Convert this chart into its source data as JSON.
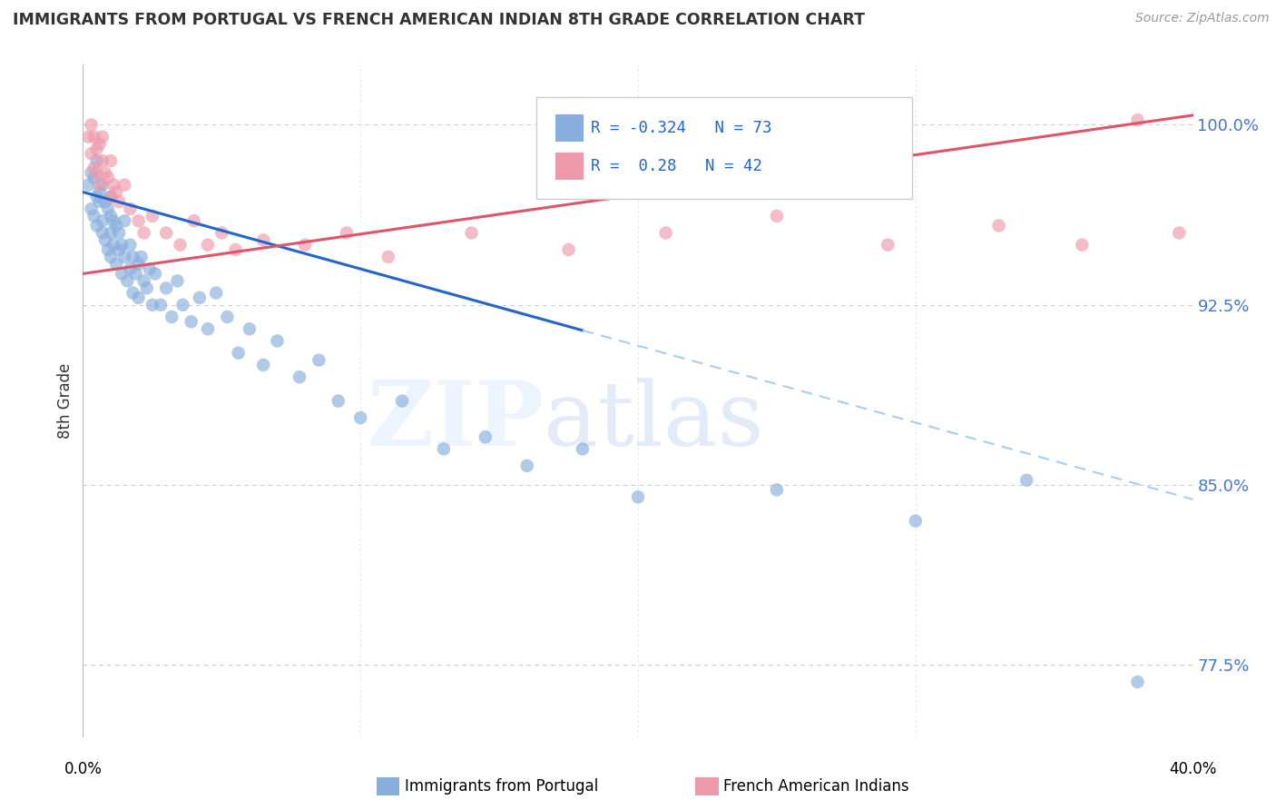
{
  "title": "IMMIGRANTS FROM PORTUGAL VS FRENCH AMERICAN INDIAN 8TH GRADE CORRELATION CHART",
  "source": "Source: ZipAtlas.com",
  "ylabel": "8th Grade",
  "yticks": [
    77.5,
    85.0,
    92.5,
    100.0
  ],
  "xlim": [
    0.0,
    40.0
  ],
  "ylim": [
    74.5,
    102.5
  ],
  "blue_R": -0.324,
  "blue_N": 73,
  "pink_R": 0.28,
  "pink_N": 42,
  "blue_color": "#88AEDD",
  "pink_color": "#EE99AA",
  "blue_line_color": "#2266CC",
  "pink_line_color": "#DD5566",
  "dashed_line_color": "#AACCEE",
  "legend_label_blue": "Immigrants from Portugal",
  "legend_label_pink": "French American Indians",
  "blue_line_x0": 0.0,
  "blue_line_y0": 97.2,
  "blue_line_slope": -0.32,
  "blue_solid_end_x": 18.0,
  "pink_line_x0": 0.0,
  "pink_line_y0": 93.8,
  "pink_line_slope": 0.165,
  "blue_scatter_x": [
    0.2,
    0.3,
    0.3,
    0.4,
    0.4,
    0.5,
    0.5,
    0.5,
    0.6,
    0.6,
    0.7,
    0.7,
    0.7,
    0.8,
    0.8,
    0.9,
    0.9,
    1.0,
    1.0,
    1.0,
    1.0,
    1.1,
    1.1,
    1.2,
    1.2,
    1.3,
    1.3,
    1.4,
    1.4,
    1.5,
    1.5,
    1.6,
    1.7,
    1.7,
    1.8,
    1.8,
    1.9,
    2.0,
    2.0,
    2.1,
    2.2,
    2.3,
    2.4,
    2.5,
    2.6,
    2.8,
    3.0,
    3.2,
    3.4,
    3.6,
    3.9,
    4.2,
    4.5,
    4.8,
    5.2,
    5.6,
    6.0,
    6.5,
    7.0,
    7.8,
    8.5,
    9.2,
    10.0,
    11.5,
    13.0,
    14.5,
    16.0,
    18.0,
    20.0,
    25.0,
    30.0,
    34.0,
    38.0
  ],
  "blue_scatter_y": [
    97.5,
    98.0,
    96.5,
    97.8,
    96.2,
    97.0,
    98.5,
    95.8,
    97.2,
    96.8,
    97.5,
    96.0,
    95.5,
    96.8,
    95.2,
    96.5,
    94.8,
    97.0,
    96.2,
    95.5,
    94.5,
    96.0,
    95.0,
    95.8,
    94.2,
    95.5,
    94.8,
    95.0,
    93.8,
    94.5,
    96.0,
    93.5,
    95.0,
    94.0,
    94.5,
    93.0,
    93.8,
    94.2,
    92.8,
    94.5,
    93.5,
    93.2,
    94.0,
    92.5,
    93.8,
    92.5,
    93.2,
    92.0,
    93.5,
    92.5,
    91.8,
    92.8,
    91.5,
    93.0,
    92.0,
    90.5,
    91.5,
    90.0,
    91.0,
    89.5,
    90.2,
    88.5,
    87.8,
    88.5,
    86.5,
    87.0,
    85.8,
    86.5,
    84.5,
    84.8,
    83.5,
    85.2,
    76.8
  ],
  "pink_scatter_x": [
    0.2,
    0.3,
    0.3,
    0.4,
    0.4,
    0.5,
    0.5,
    0.6,
    0.6,
    0.7,
    0.7,
    0.8,
    0.9,
    1.0,
    1.0,
    1.1,
    1.2,
    1.3,
    1.5,
    1.7,
    2.0,
    2.2,
    2.5,
    3.0,
    3.5,
    4.0,
    4.5,
    5.0,
    5.5,
    6.5,
    8.0,
    9.5,
    11.0,
    14.0,
    17.5,
    21.0,
    25.0,
    29.0,
    33.0,
    36.0,
    38.0,
    39.5
  ],
  "pink_scatter_y": [
    99.5,
    100.0,
    98.8,
    99.5,
    98.2,
    99.0,
    98.0,
    99.2,
    97.5,
    98.5,
    99.5,
    98.0,
    97.8,
    98.5,
    97.0,
    97.5,
    97.2,
    96.8,
    97.5,
    96.5,
    96.0,
    95.5,
    96.2,
    95.5,
    95.0,
    96.0,
    95.0,
    95.5,
    94.8,
    95.2,
    95.0,
    95.5,
    94.5,
    95.5,
    94.8,
    95.5,
    96.2,
    95.0,
    95.8,
    95.0,
    100.2,
    95.5
  ]
}
